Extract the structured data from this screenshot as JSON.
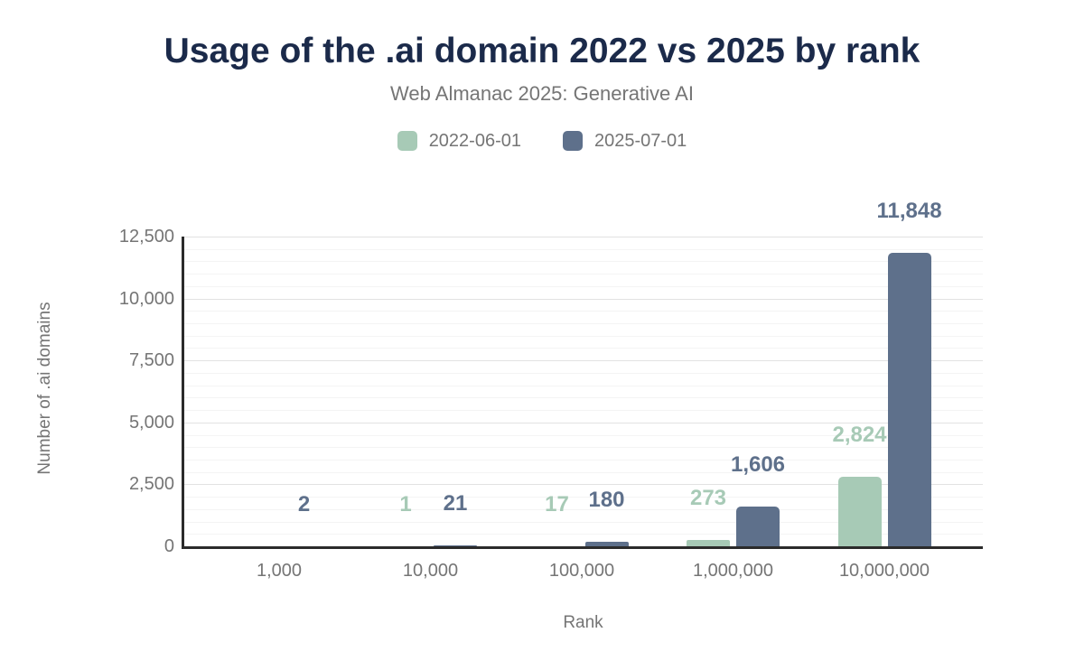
{
  "chart_data": {
    "type": "bar",
    "title": "Usage of the .ai domain 2022 vs 2025 by rank",
    "subtitle": "Web Almanac 2025: Generative AI",
    "xlabel": "Rank",
    "ylabel": "Number of .ai domains",
    "categories": [
      "1,000",
      "10,000",
      "100,000",
      "1,000,000",
      "10,000,000"
    ],
    "series": [
      {
        "name": "2022-06-01",
        "color": "#a7cab6",
        "values": [
          0,
          1,
          17,
          273,
          2824
        ],
        "labels": [
          "",
          "1",
          "17",
          "273",
          "2,824"
        ]
      },
      {
        "name": "2025-07-01",
        "color": "#5e708b",
        "values": [
          2,
          21,
          180,
          1606,
          11848
        ],
        "labels": [
          "2",
          "21",
          "180",
          "1,606",
          "11,848"
        ]
      }
    ],
    "ylim": [
      0,
      12500
    ],
    "yticks": [
      {
        "value": 0,
        "label": "0"
      },
      {
        "value": 2500,
        "label": "2,500"
      },
      {
        "value": 5000,
        "label": "5,000"
      },
      {
        "value": 7500,
        "label": "7,500"
      },
      {
        "value": 10000,
        "label": "10,000"
      },
      {
        "value": 12500,
        "label": "12,500"
      }
    ],
    "minor_gridline_interval": 500,
    "major_gridline_interval": 2500,
    "grid": "horizontal-only",
    "legend_position": "top"
  },
  "colors": {
    "title_navy": "#1b2a4a",
    "text_gray": "#757575",
    "axis_line": "#2b2b2b",
    "gridline_major": "#e2e2e2",
    "gridline_minor": "#f4f4f4",
    "series_2022": "#a7cab6",
    "series_2025": "#5e708b",
    "background": "#ffffff"
  }
}
